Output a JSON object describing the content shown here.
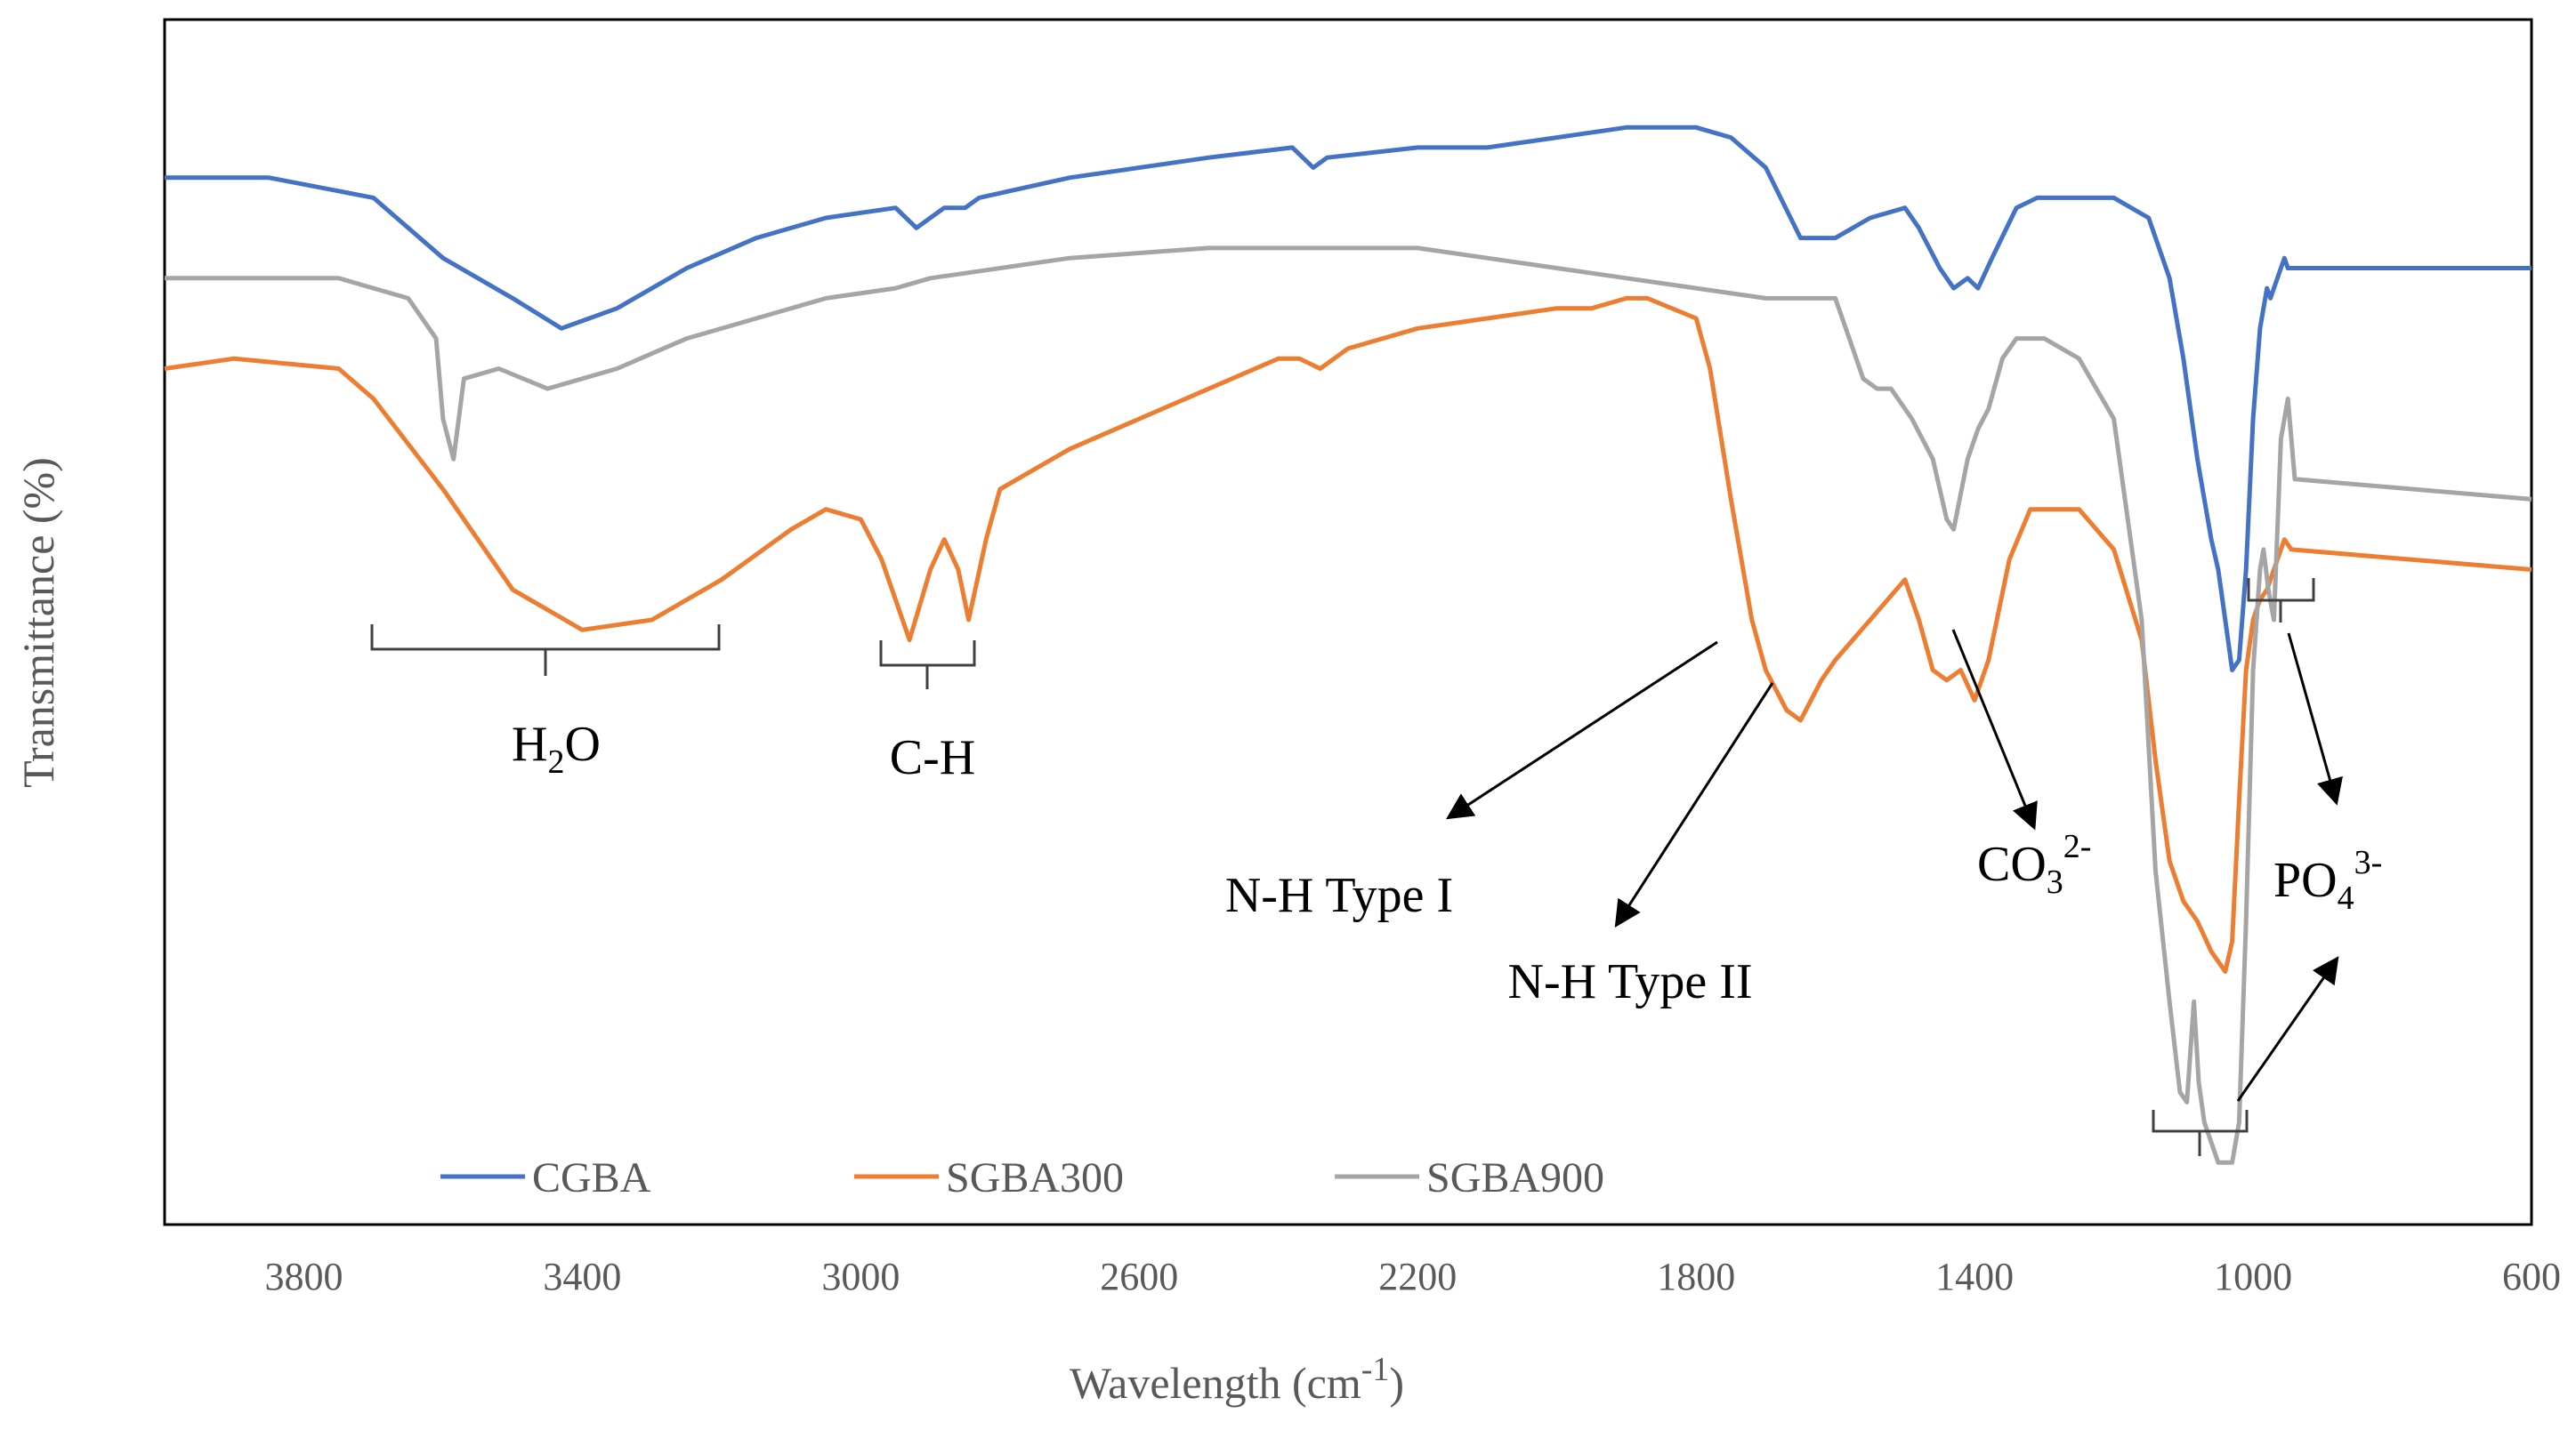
{
  "chart_data": {
    "type": "line",
    "title": "",
    "xlabel": "Wavelength (cm-1)",
    "xlabel_main": "Wavelength (cm",
    "xlabel_sup": "-1",
    "xlabel_close": ")",
    "ylabel": "Transmittance (%)",
    "xlim": [
      4000,
      600
    ],
    "x_reversed": true,
    "yaxis_ticks": false,
    "grid": false,
    "legend_position": "bottom",
    "x_ticks": [
      3800,
      3400,
      3000,
      2600,
      2200,
      1800,
      1400,
      1000,
      600
    ],
    "x_tick_labels": [
      "3800",
      "3400",
      "3000",
      "2600",
      "2200",
      "1800",
      "1400",
      "1000",
      "600"
    ],
    "series": [
      {
        "name": "CGBA",
        "color": "#4472C4",
        "points": [
          [
            4000,
            94
          ],
          [
            3850,
            94
          ],
          [
            3700,
            92
          ],
          [
            3600,
            86
          ],
          [
            3500,
            82
          ],
          [
            3430,
            79
          ],
          [
            3350,
            81
          ],
          [
            3250,
            85
          ],
          [
            3150,
            88
          ],
          [
            3050,
            90
          ],
          [
            2950,
            91
          ],
          [
            2920,
            89
          ],
          [
            2880,
            91
          ],
          [
            2850,
            91
          ],
          [
            2830,
            92
          ],
          [
            2700,
            94
          ],
          [
            2500,
            96
          ],
          [
            2380,
            97
          ],
          [
            2350,
            95
          ],
          [
            2330,
            96
          ],
          [
            2200,
            97
          ],
          [
            2100,
            97
          ],
          [
            2000,
            98
          ],
          [
            1900,
            99
          ],
          [
            1800,
            99
          ],
          [
            1750,
            98
          ],
          [
            1700,
            95
          ],
          [
            1650,
            88
          ],
          [
            1600,
            88
          ],
          [
            1550,
            90
          ],
          [
            1500,
            91
          ],
          [
            1480,
            89
          ],
          [
            1450,
            85
          ],
          [
            1430,
            83
          ],
          [
            1410,
            84
          ],
          [
            1395,
            83
          ],
          [
            1375,
            86
          ],
          [
            1340,
            91
          ],
          [
            1310,
            92
          ],
          [
            1250,
            92
          ],
          [
            1200,
            92
          ],
          [
            1150,
            90
          ],
          [
            1120,
            84
          ],
          [
            1100,
            76
          ],
          [
            1080,
            66
          ],
          [
            1070,
            62
          ],
          [
            1060,
            58
          ],
          [
            1050,
            55
          ],
          [
            1040,
            50
          ],
          [
            1030,
            45
          ],
          [
            1020,
            46
          ],
          [
            1010,
            55
          ],
          [
            1000,
            70
          ],
          [
            990,
            79
          ],
          [
            980,
            83
          ],
          [
            975,
            82
          ],
          [
            965,
            84
          ],
          [
            955,
            86
          ],
          [
            950,
            85
          ],
          [
            600,
            85
          ]
        ]
      },
      {
        "name": "SGBA300",
        "color": "#ED7D31",
        "points": [
          [
            4000,
            75
          ],
          [
            3900,
            76
          ],
          [
            3750,
            75
          ],
          [
            3700,
            72
          ],
          [
            3600,
            63
          ],
          [
            3500,
            53
          ],
          [
            3400,
            49
          ],
          [
            3300,
            50
          ],
          [
            3200,
            54
          ],
          [
            3100,
            59
          ],
          [
            3050,
            61
          ],
          [
            3000,
            60
          ],
          [
            2970,
            56
          ],
          [
            2950,
            52
          ],
          [
            2930,
            48
          ],
          [
            2900,
            55
          ],
          [
            2880,
            58
          ],
          [
            2860,
            55
          ],
          [
            2845,
            50
          ],
          [
            2820,
            58
          ],
          [
            2800,
            63
          ],
          [
            2700,
            67
          ],
          [
            2600,
            70
          ],
          [
            2500,
            73
          ],
          [
            2400,
            76
          ],
          [
            2370,
            76
          ],
          [
            2340,
            75
          ],
          [
            2300,
            77
          ],
          [
            2200,
            79
          ],
          [
            2100,
            80
          ],
          [
            2000,
            81
          ],
          [
            1950,
            81
          ],
          [
            1900,
            82
          ],
          [
            1870,
            82
          ],
          [
            1800,
            80
          ],
          [
            1780,
            75
          ],
          [
            1750,
            62
          ],
          [
            1720,
            50
          ],
          [
            1700,
            45
          ],
          [
            1670,
            41
          ],
          [
            1650,
            40
          ],
          [
            1620,
            44
          ],
          [
            1600,
            46
          ],
          [
            1550,
            50
          ],
          [
            1500,
            54
          ],
          [
            1480,
            50
          ],
          [
            1460,
            45
          ],
          [
            1440,
            44
          ],
          [
            1420,
            45
          ],
          [
            1400,
            42
          ],
          [
            1380,
            46
          ],
          [
            1350,
            56
          ],
          [
            1320,
            61
          ],
          [
            1300,
            61
          ],
          [
            1250,
            61
          ],
          [
            1200,
            57
          ],
          [
            1160,
            48
          ],
          [
            1140,
            36
          ],
          [
            1120,
            26
          ],
          [
            1100,
            22
          ],
          [
            1080,
            20
          ],
          [
            1060,
            17
          ],
          [
            1050,
            16
          ],
          [
            1040,
            15
          ],
          [
            1030,
            18
          ],
          [
            1020,
            32
          ],
          [
            1010,
            45
          ],
          [
            1000,
            50
          ],
          [
            990,
            52
          ],
          [
            980,
            53
          ],
          [
            970,
            55
          ],
          [
            955,
            58
          ],
          [
            945,
            57
          ],
          [
            600,
            55
          ]
        ]
      },
      {
        "name": "SGBA900",
        "color": "#A5A5A5",
        "points": [
          [
            4000,
            84
          ],
          [
            3900,
            84
          ],
          [
            3750,
            84
          ],
          [
            3700,
            83
          ],
          [
            3650,
            82
          ],
          [
            3610,
            78
          ],
          [
            3600,
            70
          ],
          [
            3585,
            66
          ],
          [
            3570,
            74
          ],
          [
            3520,
            75
          ],
          [
            3450,
            73
          ],
          [
            3350,
            75
          ],
          [
            3250,
            78
          ],
          [
            3150,
            80
          ],
          [
            3050,
            82
          ],
          [
            2950,
            83
          ],
          [
            2900,
            84
          ],
          [
            2700,
            86
          ],
          [
            2500,
            87
          ],
          [
            2400,
            87
          ],
          [
            2200,
            87
          ],
          [
            2100,
            86
          ],
          [
            2000,
            85
          ],
          [
            1900,
            84
          ],
          [
            1800,
            83
          ],
          [
            1700,
            82
          ],
          [
            1600,
            82
          ],
          [
            1580,
            78
          ],
          [
            1560,
            74
          ],
          [
            1540,
            73
          ],
          [
            1520,
            73
          ],
          [
            1490,
            70
          ],
          [
            1460,
            66
          ],
          [
            1440,
            60
          ],
          [
            1430,
            59
          ],
          [
            1410,
            66
          ],
          [
            1395,
            69
          ],
          [
            1380,
            71
          ],
          [
            1360,
            76
          ],
          [
            1340,
            78
          ],
          [
            1300,
            78
          ],
          [
            1250,
            76
          ],
          [
            1200,
            70
          ],
          [
            1160,
            50
          ],
          [
            1140,
            25
          ],
          [
            1120,
            12
          ],
          [
            1105,
            3
          ],
          [
            1095,
            2
          ],
          [
            1085,
            12
          ],
          [
            1078,
            4
          ],
          [
            1070,
            0
          ],
          [
            1050,
            -4
          ],
          [
            1030,
            -4
          ],
          [
            1020,
            0
          ],
          [
            1010,
            20
          ],
          [
            1000,
            45
          ],
          [
            990,
            55
          ],
          [
            985,
            57
          ],
          [
            978,
            53
          ],
          [
            970,
            50
          ],
          [
            960,
            68
          ],
          [
            950,
            72
          ],
          [
            940,
            64
          ],
          [
            600,
            62
          ]
        ]
      }
    ],
    "annotations": [
      {
        "name": "h2o",
        "label": "H2O",
        "main": "H",
        "sub": "2",
        "rest": "O"
      },
      {
        "name": "ch",
        "label": "C-H"
      },
      {
        "name": "nh1",
        "label": "N-H Type I"
      },
      {
        "name": "nh2",
        "label": "N-H Type II"
      },
      {
        "name": "co3",
        "label": "CO32-",
        "main": "CO",
        "sub": "3",
        "sup": "2-"
      },
      {
        "name": "po4",
        "label": "PO43-",
        "main": "PO",
        "sub": "4",
        "sup": "3-"
      }
    ],
    "legend": [
      "CGBA",
      "SGBA300",
      "SGBA900"
    ]
  }
}
